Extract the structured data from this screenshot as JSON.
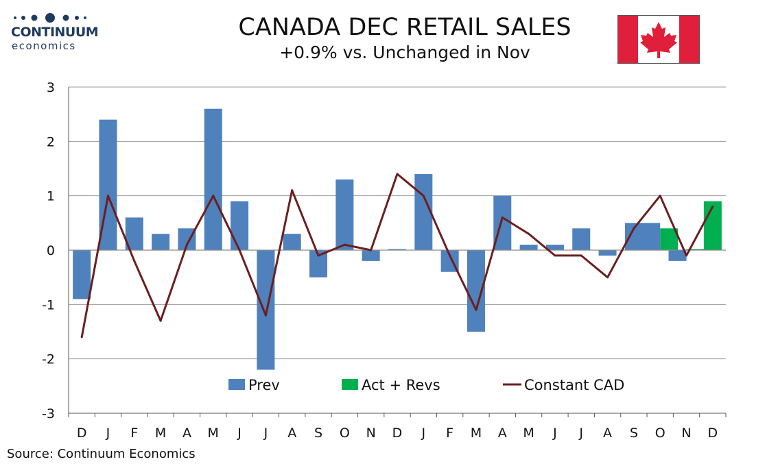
{
  "logo": {
    "word": "CONTINUUM",
    "sub": "economics"
  },
  "header": {
    "title": "CANADA DEC RETAIL SALES",
    "subtitle": "+0.9% vs. Unchanged in Nov"
  },
  "source": "Source: Continuum Economics",
  "colors": {
    "prev": "#4f81bd",
    "act": "#00b050",
    "line": "#6b1f1f",
    "flag_red": "#e0203a"
  },
  "chart_data": {
    "type": "bar",
    "categories": [
      "D",
      "J",
      "F",
      "M",
      "A",
      "M",
      "J",
      "J",
      "A",
      "S",
      "O",
      "N",
      "D",
      "J",
      "F",
      "M",
      "A",
      "M",
      "J",
      "J",
      "A",
      "S",
      "O",
      "N",
      "D"
    ],
    "ylim": [
      -3,
      3
    ],
    "yticks": [
      "3",
      "2",
      "1",
      "0",
      "-1",
      "-2",
      "-3"
    ],
    "grid": true,
    "legend_position": "bottom-inside",
    "series": [
      {
        "name": "Prev",
        "kind": "bar",
        "values": [
          -0.9,
          2.4,
          0.6,
          0.3,
          0.4,
          2.6,
          0.9,
          -2.2,
          0.3,
          -0.5,
          1.3,
          -0.2,
          0.02,
          1.4,
          -0.4,
          -1.5,
          1.0,
          0.1,
          0.1,
          0.4,
          -0.1,
          0.5,
          0.5,
          -0.2,
          null
        ]
      },
      {
        "name": "Act + Revs",
        "kind": "bar",
        "values": [
          null,
          null,
          null,
          null,
          null,
          null,
          null,
          null,
          null,
          null,
          null,
          null,
          null,
          null,
          null,
          null,
          null,
          null,
          null,
          null,
          null,
          null,
          0.4,
          0.02,
          0.9
        ]
      },
      {
        "name": "Constant CAD",
        "kind": "line",
        "values": [
          -1.6,
          1.0,
          -0.2,
          -1.3,
          0.1,
          1.0,
          0.0,
          -1.2,
          1.1,
          -0.1,
          0.1,
          0.0,
          1.4,
          1.0,
          -0.1,
          -1.1,
          0.6,
          0.3,
          -0.1,
          -0.1,
          -0.5,
          0.4,
          1.0,
          -0.1,
          0.8
        ]
      }
    ]
  }
}
